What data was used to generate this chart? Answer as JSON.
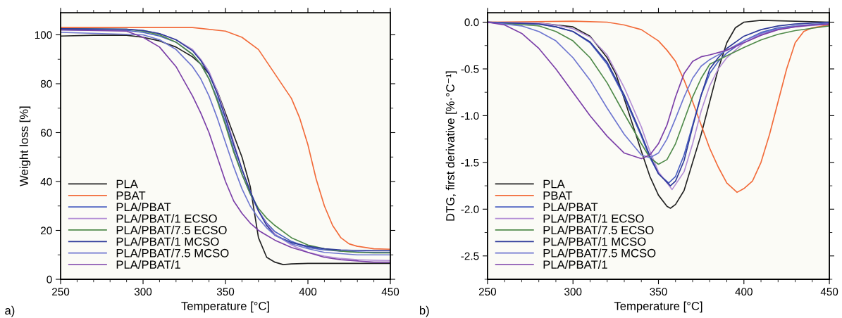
{
  "chart_data": [
    {
      "type": "line",
      "xlabel": "Temperature [°C]",
      "ylabel": "Weight loss [%]",
      "xlim": [
        250,
        450
      ],
      "xticks": [
        250,
        300,
        350,
        400,
        450
      ],
      "ylim": [
        0,
        109
      ],
      "yticks": [
        0,
        20,
        40,
        60,
        80,
        100
      ],
      "legend": "bottom left",
      "annotations": [
        "a)"
      ],
      "series": [
        {
          "name": "PLA",
          "color": "#222222",
          "x": [
            250,
            270,
            290,
            300,
            310,
            320,
            330,
            335,
            340,
            345,
            350,
            355,
            360,
            365,
            370,
            375,
            380,
            385,
            390,
            400,
            410,
            420,
            430,
            440,
            450
          ],
          "values": [
            99.5,
            99.8,
            99.8,
            99,
            97.5,
            95,
            91,
            88,
            84,
            77,
            68,
            59,
            50,
            38,
            17,
            9,
            7,
            6,
            6.3,
            6.5,
            6.5,
            6.5,
            6.5,
            6.5,
            6.5
          ]
        },
        {
          "name": "PBAT",
          "color": "#f26b3a",
          "x": [
            250,
            300,
            330,
            350,
            360,
            370,
            380,
            390,
            395,
            400,
            405,
            410,
            415,
            420,
            425,
            430,
            440,
            450
          ],
          "values": [
            103,
            103,
            103,
            101.5,
            99,
            94,
            84,
            74,
            66,
            55,
            41,
            30,
            22,
            17,
            14.5,
            13.5,
            12.5,
            12.3
          ]
        },
        {
          "name": "PLA/PBAT",
          "color": "#4a5fc1",
          "x": [
            250,
            290,
            300,
            310,
            320,
            330,
            335,
            340,
            345,
            350,
            355,
            360,
            365,
            370,
            375,
            380,
            390,
            400,
            410,
            420,
            430,
            440,
            450
          ],
          "values": [
            102,
            101.8,
            101,
            99.5,
            97,
            92,
            88,
            82,
            74,
            64,
            53,
            43,
            35,
            28,
            23,
            19.5,
            15.5,
            13,
            12,
            11.5,
            11.2,
            11,
            11
          ]
        },
        {
          "name": "PLA/PBAT/1 ECSO",
          "color": "#b48fd6",
          "x": [
            250,
            290,
            300,
            310,
            320,
            330,
            335,
            340,
            345,
            350,
            355,
            360,
            365,
            370,
            375,
            380,
            390,
            400,
            410,
            420,
            430,
            440,
            450
          ],
          "values": [
            102.5,
            102.3,
            101.8,
            100.5,
            98,
            94,
            90,
            85,
            77,
            67,
            56,
            45,
            36,
            28,
            22.5,
            18.5,
            14,
            11,
            9.5,
            8.5,
            8,
            7.8,
            7.7
          ]
        },
        {
          "name": "PLA/PBAT/7.5 ECSO",
          "color": "#4f8a4a",
          "x": [
            250,
            290,
            300,
            310,
            320,
            330,
            335,
            340,
            345,
            350,
            355,
            360,
            365,
            370,
            375,
            380,
            390,
            400,
            410,
            420,
            430,
            440,
            450
          ],
          "values": [
            102.5,
            102.3,
            101.5,
            100,
            97,
            92,
            88,
            82,
            73,
            63,
            52,
            43,
            35,
            29,
            25,
            22,
            17,
            14,
            12.5,
            11.5,
            11,
            10.8,
            10.8
          ]
        },
        {
          "name": "PLA/PBAT/1 MCSO",
          "color": "#2e3a9a",
          "x": [
            250,
            290,
            300,
            310,
            320,
            330,
            335,
            340,
            345,
            350,
            355,
            360,
            365,
            370,
            375,
            380,
            390,
            400,
            410,
            420,
            430,
            440,
            450
          ],
          "values": [
            102.5,
            102.3,
            101.8,
            100.5,
            98,
            93.5,
            89.5,
            84,
            76,
            66,
            55,
            45,
            36,
            28,
            22,
            18,
            15,
            13.5,
            12.5,
            12,
            11.8,
            11.7,
            11.7
          ]
        },
        {
          "name": "PLA/PBAT/7.5 MCSO",
          "color": "#6f77d0",
          "x": [
            250,
            300,
            310,
            320,
            330,
            335,
            340,
            345,
            350,
            355,
            360,
            365,
            370,
            375,
            380,
            390,
            400,
            410,
            420,
            430,
            440,
            450
          ],
          "values": [
            101,
            100,
            98,
            94,
            87,
            82,
            75,
            66,
            56,
            46,
            37,
            30,
            25,
            21,
            18,
            14.5,
            12.5,
            11,
            10.5,
            10,
            10,
            10
          ]
        },
        {
          "name": "PLA/PBAT/1",
          "color": "#7b3fa8",
          "x": [
            250,
            290,
            300,
            310,
            320,
            330,
            335,
            340,
            345,
            350,
            355,
            360,
            365,
            370,
            375,
            380,
            390,
            400,
            410,
            420,
            430,
            440,
            450
          ],
          "values": [
            102,
            101.5,
            99,
            95,
            87,
            75,
            68,
            60,
            50,
            40,
            32,
            27,
            23,
            20,
            18,
            16,
            13,
            11,
            9,
            8,
            7.5,
            7,
            7
          ]
        }
      ]
    },
    {
      "type": "line",
      "xlabel": "Temperature [°C]",
      "ylabel": "DTG, first derivative [%·°C⁻¹]",
      "xlim": [
        250,
        450
      ],
      "xticks": [
        250,
        300,
        350,
        400,
        450
      ],
      "ylim": [
        -2.75,
        0.1
      ],
      "yticks": [
        {
          "value": 0,
          "label": "0.0"
        },
        {
          "value": -0.5,
          "label": "-0.5"
        },
        {
          "value": -1,
          "label": "-1.0"
        },
        {
          "value": -1.5,
          "label": "-1.5"
        },
        {
          "value": -2,
          "label": "-2.0"
        },
        {
          "value": -2.5,
          "label": "-2.5"
        }
      ],
      "legend": "bottom left",
      "annotations": [
        "b)"
      ],
      "series": [
        {
          "name": "PLA",
          "color": "#222222",
          "x": [
            250,
            280,
            300,
            310,
            320,
            325,
            330,
            335,
            340,
            345,
            350,
            355,
            357,
            360,
            365,
            370,
            375,
            380,
            385,
            390,
            395,
            400,
            410,
            450
          ],
          "values": [
            0,
            -0.01,
            -0.05,
            -0.15,
            -0.38,
            -0.55,
            -0.82,
            -1.1,
            -1.38,
            -1.65,
            -1.85,
            -1.97,
            -1.99,
            -1.95,
            -1.8,
            -1.5,
            -1.2,
            -0.85,
            -0.5,
            -0.22,
            -0.06,
            0,
            0.02,
            0
          ]
        },
        {
          "name": "PBAT",
          "color": "#f26b3a",
          "x": [
            250,
            300,
            320,
            330,
            340,
            350,
            355,
            360,
            365,
            370,
            375,
            380,
            385,
            390,
            396,
            400,
            405,
            410,
            415,
            420,
            425,
            430,
            435,
            440,
            450
          ],
          "values": [
            0,
            0.01,
            0,
            -0.03,
            -0.08,
            -0.2,
            -0.3,
            -0.42,
            -0.62,
            -0.85,
            -1.1,
            -1.35,
            -1.55,
            -1.72,
            -1.82,
            -1.78,
            -1.7,
            -1.5,
            -1.2,
            -0.85,
            -0.5,
            -0.22,
            -0.1,
            -0.06,
            -0.03
          ]
        },
        {
          "name": "PLA/PBAT",
          "color": "#4a5fc1",
          "x": [
            250,
            280,
            290,
            300,
            310,
            320,
            330,
            340,
            345,
            350,
            356,
            360,
            365,
            370,
            375,
            380,
            385,
            390,
            400,
            410,
            420,
            430,
            450
          ],
          "values": [
            0,
            -0.02,
            -0.05,
            -0.1,
            -0.22,
            -0.45,
            -0.8,
            -1.22,
            -1.45,
            -1.62,
            -1.72,
            -1.65,
            -1.42,
            -1.1,
            -0.78,
            -0.55,
            -0.42,
            -0.33,
            -0.2,
            -0.11,
            -0.06,
            -0.04,
            -0.01
          ]
        },
        {
          "name": "PLA/PBAT/1 ECSO",
          "color": "#b48fd6",
          "x": [
            250,
            280,
            290,
            300,
            310,
            320,
            330,
            340,
            345,
            350,
            358,
            365,
            370,
            375,
            380,
            385,
            390,
            400,
            410,
            420,
            430,
            450
          ],
          "values": [
            0,
            -0.01,
            -0.03,
            -0.07,
            -0.16,
            -0.35,
            -0.7,
            -1.12,
            -1.38,
            -1.6,
            -1.79,
            -1.6,
            -1.3,
            -0.95,
            -0.68,
            -0.5,
            -0.38,
            -0.22,
            -0.13,
            -0.08,
            -0.05,
            -0.02
          ]
        },
        {
          "name": "PLA/PBAT/7.5 ECSO",
          "color": "#4f8a4a",
          "x": [
            250,
            280,
            290,
            300,
            310,
            320,
            330,
            340,
            345,
            350,
            355,
            360,
            365,
            370,
            375,
            380,
            390,
            400,
            410,
            420,
            430,
            450
          ],
          "values": [
            0,
            -0.04,
            -0.1,
            -0.2,
            -0.38,
            -0.65,
            -0.98,
            -1.3,
            -1.45,
            -1.52,
            -1.47,
            -1.3,
            -1.05,
            -0.8,
            -0.6,
            -0.45,
            -0.36,
            -0.27,
            -0.19,
            -0.13,
            -0.09,
            -0.04
          ]
        },
        {
          "name": "PLA/PBAT/1 MCSO",
          "color": "#2e3a9a",
          "x": [
            250,
            280,
            290,
            300,
            310,
            320,
            330,
            340,
            345,
            350,
            357,
            360,
            365,
            370,
            375,
            380,
            385,
            390,
            400,
            410,
            420,
            430,
            450
          ],
          "values": [
            0,
            -0.02,
            -0.05,
            -0.1,
            -0.21,
            -0.43,
            -0.78,
            -1.2,
            -1.43,
            -1.62,
            -1.75,
            -1.7,
            -1.48,
            -1.12,
            -0.78,
            -0.5,
            -0.38,
            -0.28,
            -0.15,
            -0.08,
            -0.04,
            -0.02,
            0
          ]
        },
        {
          "name": "PLA/PBAT/7.5 MCSO",
          "color": "#6f77d0",
          "x": [
            250,
            270,
            280,
            290,
            300,
            310,
            320,
            330,
            340,
            345,
            350,
            355,
            360,
            365,
            370,
            375,
            380,
            390,
            400,
            410,
            420,
            430,
            450
          ],
          "values": [
            0,
            -0.04,
            -0.1,
            -0.2,
            -0.38,
            -0.62,
            -0.92,
            -1.2,
            -1.42,
            -1.45,
            -1.4,
            -1.25,
            -1.03,
            -0.8,
            -0.6,
            -0.47,
            -0.4,
            -0.3,
            -0.2,
            -0.12,
            -0.07,
            -0.04,
            -0.02
          ]
        },
        {
          "name": "PLA/PBAT/1",
          "color": "#7b3fa8",
          "x": [
            250,
            260,
            270,
            280,
            290,
            300,
            310,
            320,
            330,
            340,
            345,
            350,
            355,
            360,
            365,
            370,
            375,
            380,
            390,
            400,
            410,
            420,
            430,
            440,
            450
          ],
          "values": [
            0,
            -0.03,
            -0.12,
            -0.28,
            -0.5,
            -0.75,
            -1,
            -1.22,
            -1.4,
            -1.46,
            -1.42,
            -1.3,
            -1.1,
            -0.8,
            -0.55,
            -0.42,
            -0.37,
            -0.35,
            -0.3,
            -0.22,
            -0.14,
            -0.08,
            -0.05,
            -0.03,
            -0.02
          ]
        }
      ]
    }
  ]
}
